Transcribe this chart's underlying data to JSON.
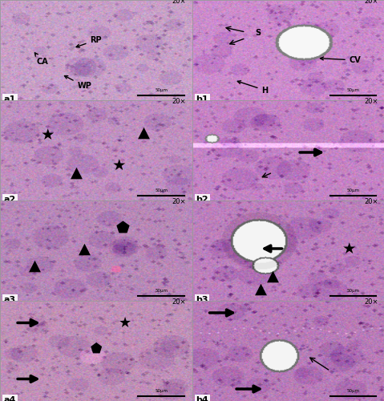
{
  "panels": {
    "a1": {
      "bg": "#c8a0c8",
      "seed": 1
    },
    "a2": {
      "bg": "#c090c0",
      "seed": 2
    },
    "a3": {
      "bg": "#b888b8",
      "seed": 3
    },
    "a4": {
      "bg": "#c090b8",
      "seed": 4
    },
    "b1": {
      "bg": "#cc8ccc",
      "seed": 5
    },
    "b2": {
      "bg": "#c484c4",
      "seed": 6
    },
    "b3": {
      "bg": "#bc80bc",
      "seed": 7
    },
    "b4": {
      "bg": "#b87cb8",
      "seed": 8
    }
  },
  "panel_order": [
    [
      "a1",
      "b1"
    ],
    [
      "a2",
      "b2"
    ],
    [
      "a3",
      "b3"
    ],
    [
      "a4",
      "b4"
    ]
  ],
  "scale_bar_text": "50μm",
  "magnification": "20×"
}
